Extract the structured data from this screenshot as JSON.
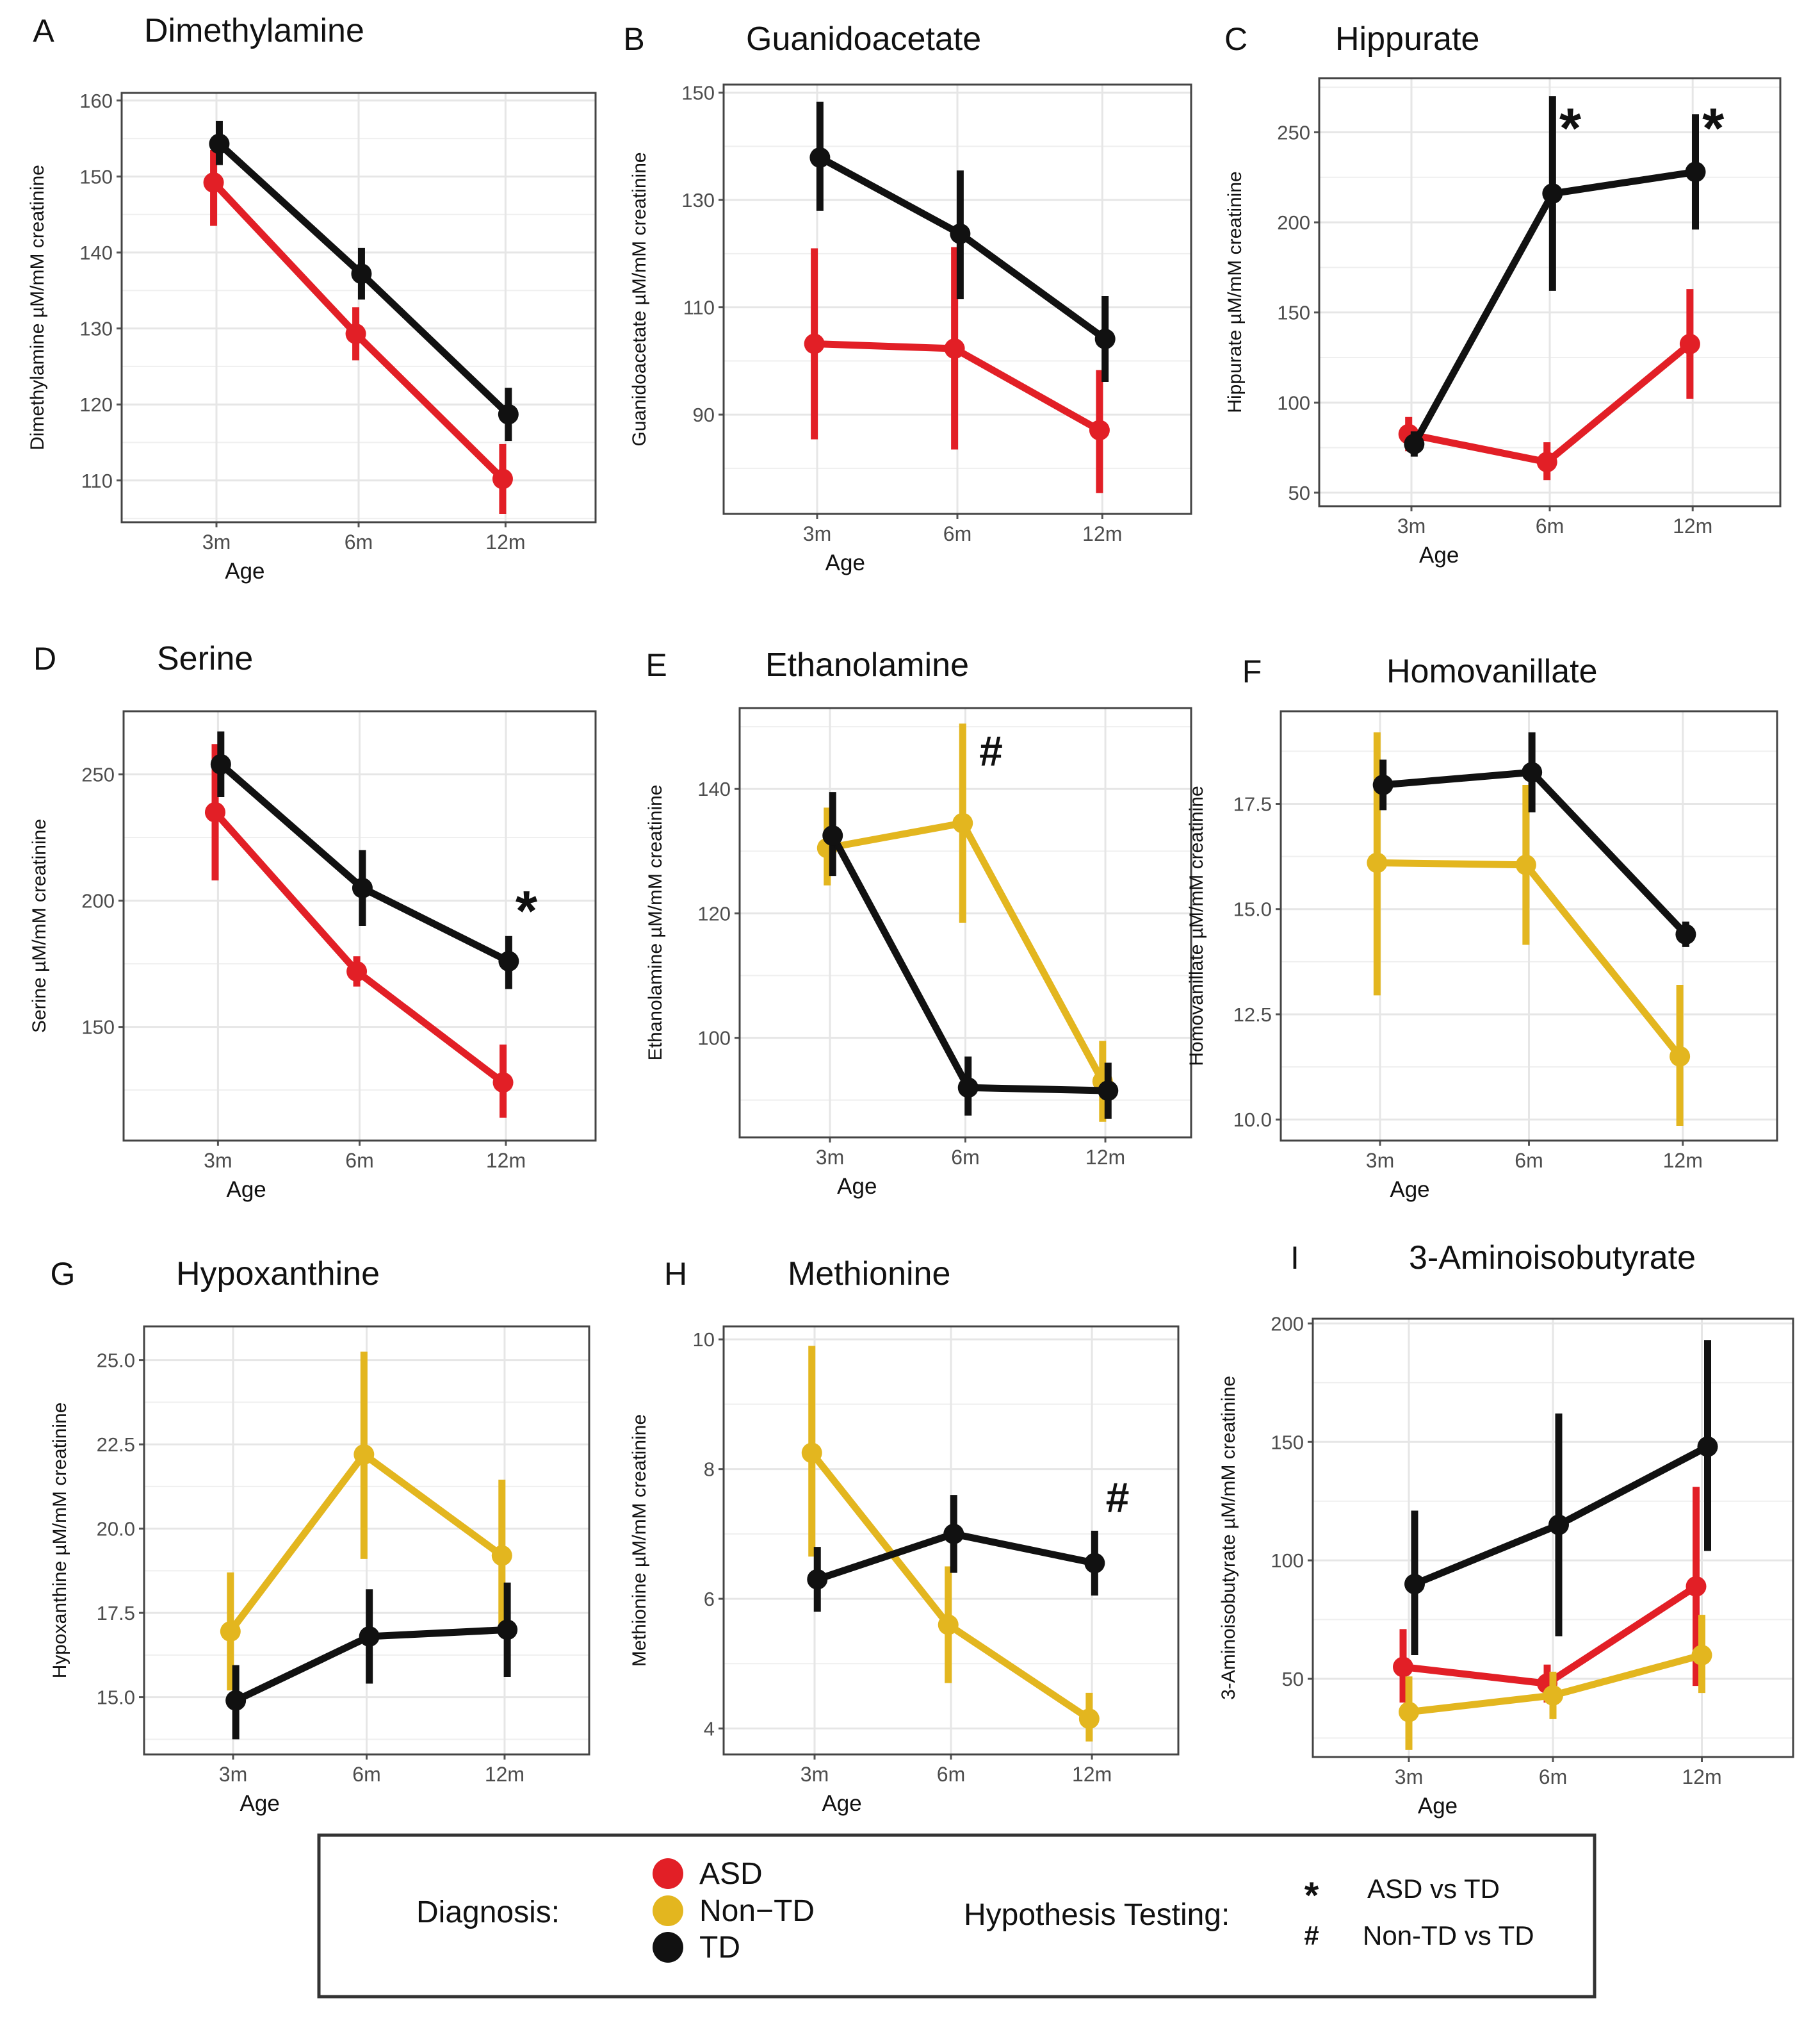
{
  "colors": {
    "ASD": "#e21f26",
    "Non-TD": "#e3b61f",
    "TD": "#111111",
    "grid": "#e6e6e6",
    "border": "#444444"
  },
  "chart_data": [
    {
      "id": "dimethylamine",
      "panel_letter": "A",
      "title": "Dimethylamine",
      "type": "line",
      "xlabel": "Age",
      "ylabel": "Dimethylamine µM/mM creatinine",
      "categories": [
        "3m",
        "6m",
        "12m"
      ],
      "ylim": [
        104.5,
        161
      ],
      "y_ticks": [
        "110",
        "120",
        "130",
        "140",
        "150",
        "160"
      ],
      "series": [
        {
          "name": "ASD",
          "color": "#e21f26",
          "mean": [
            149.2,
            129.3,
            110.2
          ],
          "lower": [
            143.5,
            125.8,
            105.6
          ],
          "upper": [
            153.5,
            132.8,
            114.8
          ]
        },
        {
          "name": "TD",
          "color": "#111111",
          "mean": [
            154.3,
            137.2,
            118.7
          ],
          "lower": [
            151.5,
            133.8,
            115.2
          ],
          "upper": [
            157.3,
            140.6,
            122.2
          ]
        }
      ],
      "annotations": []
    },
    {
      "id": "guanidoacetate",
      "panel_letter": "B",
      "title": "Guanidoacetate",
      "type": "line",
      "xlabel": "Age",
      "ylabel": "Guanidoacetate  µM/mM creatinine",
      "categories": [
        "3m",
        "6m",
        "12m"
      ],
      "ylim": [
        71.5,
        151.5
      ],
      "y_ticks": [
        "90",
        "110",
        "130",
        "150"
      ],
      "series": [
        {
          "name": "ASD",
          "color": "#e21f26",
          "mean": [
            103.2,
            102.3,
            87.1
          ],
          "lower": [
            85.4,
            83.5,
            75.4
          ],
          "upper": [
            121,
            121.2,
            98.3
          ]
        },
        {
          "name": "TD",
          "color": "#111111",
          "mean": [
            137.9,
            123.7,
            104.1
          ],
          "lower": [
            128,
            111.5,
            96.1
          ],
          "upper": [
            148.3,
            135.5,
            112.1
          ]
        }
      ],
      "annotations": []
    },
    {
      "id": "hippurate",
      "panel_letter": "C",
      "title": "Hippurate",
      "type": "line",
      "xlabel": "Age",
      "ylabel": "Hippurate µM/mM creatinine",
      "categories": [
        "3m",
        "6m",
        "12m"
      ],
      "ylim": [
        42.5,
        280
      ],
      "y_ticks": [
        "50",
        "100",
        "150",
        "200",
        "250"
      ],
      "series": [
        {
          "name": "ASD",
          "color": "#e21f26",
          "mean": [
            82.5,
            67,
            132.5
          ],
          "lower": [
            73,
            57,
            102
          ],
          "upper": [
            92,
            78,
            163
          ]
        },
        {
          "name": "TD",
          "color": "#111111",
          "mean": [
            77,
            216,
            228
          ],
          "lower": [
            70,
            162,
            196
          ],
          "upper": [
            84,
            270,
            260
          ]
        }
      ],
      "annotations": [
        {
          "symbol": "*",
          "x": "6m",
          "y": 258
        },
        {
          "symbol": "*",
          "x": "12m",
          "y": 258
        }
      ]
    },
    {
      "id": "serine",
      "panel_letter": "D",
      "title": "Serine",
      "type": "line",
      "xlabel": "Age",
      "ylabel": "Serine µM/mM creatinine",
      "categories": [
        "3m",
        "6m",
        "12m"
      ],
      "ylim": [
        105,
        275
      ],
      "y_ticks": [
        "150",
        "200",
        "250"
      ],
      "series": [
        {
          "name": "ASD",
          "color": "#e21f26",
          "mean": [
            235,
            172,
            128
          ],
          "lower": [
            208,
            166,
            114
          ],
          "upper": [
            262,
            178,
            143
          ]
        },
        {
          "name": "TD",
          "color": "#111111",
          "mean": [
            254,
            205,
            176
          ],
          "lower": [
            241,
            190,
            165
          ],
          "upper": [
            267,
            220,
            186
          ]
        }
      ],
      "annotations": [
        {
          "symbol": "*",
          "x": "12m",
          "y": 200
        }
      ]
    },
    {
      "id": "ethanolamine",
      "panel_letter": "E",
      "title": "Ethanolamine",
      "type": "line",
      "xlabel": "Age",
      "ylabel": "Ethanolamine  µM/mM creatinine",
      "categories": [
        "3m",
        "6m",
        "12m"
      ],
      "ylim": [
        84,
        153
      ],
      "y_ticks": [
        "100",
        "120",
        "140"
      ],
      "series": [
        {
          "name": "Non-TD",
          "color": "#e3b61f",
          "mean": [
            130.5,
            134.5,
            93
          ],
          "lower": [
            124.5,
            118.5,
            86.5
          ],
          "upper": [
            137,
            150.5,
            99.5
          ]
        },
        {
          "name": "TD",
          "color": "#111111",
          "mean": [
            132.5,
            92,
            91.5
          ],
          "lower": [
            126,
            87.5,
            87
          ],
          "upper": [
            139.5,
            97,
            96
          ]
        }
      ],
      "annotations": [
        {
          "symbol": "#",
          "x": "6m",
          "y": 146
        }
      ]
    },
    {
      "id": "homovanillate",
      "panel_letter": "F",
      "title": "Homovanillate",
      "type": "line",
      "xlabel": "Age",
      "ylabel": "Homovanillate  µM/mM creatinine",
      "categories": [
        "3m",
        "6m",
        "12m"
      ],
      "ylim": [
        9.5,
        19.7
      ],
      "y_ticks": [
        "10.0",
        "12.5",
        "15.0",
        "17.5"
      ],
      "series": [
        {
          "name": "Non-TD",
          "color": "#e3b61f",
          "mean": [
            16.1,
            16.05,
            11.5
          ],
          "lower": [
            12.95,
            14.15,
            9.85
          ],
          "upper": [
            19.2,
            17.95,
            13.2
          ]
        },
        {
          "name": "TD",
          "color": "#111111",
          "mean": [
            17.95,
            18.25,
            14.4
          ],
          "lower": [
            17.35,
            17.3,
            14.1
          ],
          "upper": [
            18.55,
            19.2,
            14.7
          ]
        }
      ],
      "annotations": []
    },
    {
      "id": "hypoxanthine",
      "panel_letter": "G",
      "title": "Hypoxanthine",
      "type": "line",
      "xlabel": "Age",
      "ylabel": "Hypoxanthine µM/mM creatinine",
      "categories": [
        "3m",
        "6m",
        "12m"
      ],
      "ylim": [
        13.3,
        26
      ],
      "y_ticks": [
        "15.0",
        "17.5",
        "20.0",
        "22.5",
        "25.0"
      ],
      "series": [
        {
          "name": "Non-TD",
          "color": "#e3b61f",
          "mean": [
            16.95,
            22.2,
            19.2
          ],
          "lower": [
            15.2,
            19.1,
            17.05
          ],
          "upper": [
            18.7,
            25.25,
            21.45
          ]
        },
        {
          "name": "TD",
          "color": "#111111",
          "mean": [
            14.9,
            16.8,
            17
          ],
          "lower": [
            13.75,
            15.4,
            15.6
          ],
          "upper": [
            15.95,
            18.2,
            18.4
          ]
        }
      ],
      "annotations": []
    },
    {
      "id": "methionine",
      "panel_letter": "H",
      "title": "Methionine",
      "type": "line",
      "xlabel": "Age",
      "ylabel": "Methionine µM/mM creatinine",
      "categories": [
        "3m",
        "6m",
        "12m"
      ],
      "ylim": [
        3.6,
        10.2
      ],
      "y_ticks": [
        "4",
        "6",
        "8",
        "10"
      ],
      "series": [
        {
          "name": "Non-TD",
          "color": "#e3b61f",
          "mean": [
            8.25,
            5.6,
            4.15
          ],
          "lower": [
            6.65,
            4.7,
            3.8
          ],
          "upper": [
            9.9,
            6.5,
            4.55
          ]
        },
        {
          "name": "TD",
          "color": "#111111",
          "mean": [
            6.3,
            7,
            6.55
          ],
          "lower": [
            5.8,
            6.4,
            6.05
          ],
          "upper": [
            6.8,
            7.6,
            7.05
          ]
        }
      ],
      "annotations": [
        {
          "symbol": "#",
          "x": "12m",
          "y": 7.55
        }
      ]
    },
    {
      "id": "aminoisobutyrate",
      "panel_letter": "I",
      "title": "3-Aminoisobutyrate",
      "type": "line",
      "xlabel": "Age",
      "ylabel": "3-Aminoisobutyrate µM/mM creatinine",
      "categories": [
        "3m",
        "6m",
        "12m"
      ],
      "ylim": [
        17,
        202
      ],
      "y_ticks": [
        "50",
        "100",
        "150",
        "200"
      ],
      "series": [
        {
          "name": "ASD",
          "color": "#e21f26",
          "mean": [
            55,
            48,
            89
          ],
          "lower": [
            40,
            40,
            47
          ],
          "upper": [
            71,
            56,
            131
          ]
        },
        {
          "name": "Non-TD",
          "color": "#e3b61f",
          "mean": [
            36,
            43,
            60
          ],
          "lower": [
            20,
            33,
            44
          ],
          "upper": [
            51,
            53,
            77
          ]
        },
        {
          "name": "TD",
          "color": "#111111",
          "mean": [
            90,
            115,
            148
          ],
          "lower": [
            60,
            68,
            104
          ],
          "upper": [
            121,
            162,
            193
          ]
        }
      ],
      "annotations": []
    }
  ],
  "legend": {
    "diagnosis_label": "Diagnosis:",
    "diagnosis_items": [
      {
        "label": "ASD",
        "color": "#e21f26"
      },
      {
        "label": "Non−TD",
        "color": "#e3b61f"
      },
      {
        "label": "TD",
        "color": "#111111"
      }
    ],
    "hypothesis_label": "Hypothesis Testing:",
    "hypothesis_items": [
      {
        "symbol": "*",
        "label": "ASD vs TD"
      },
      {
        "symbol": "#",
        "label": "Non-TD vs TD"
      }
    ]
  }
}
